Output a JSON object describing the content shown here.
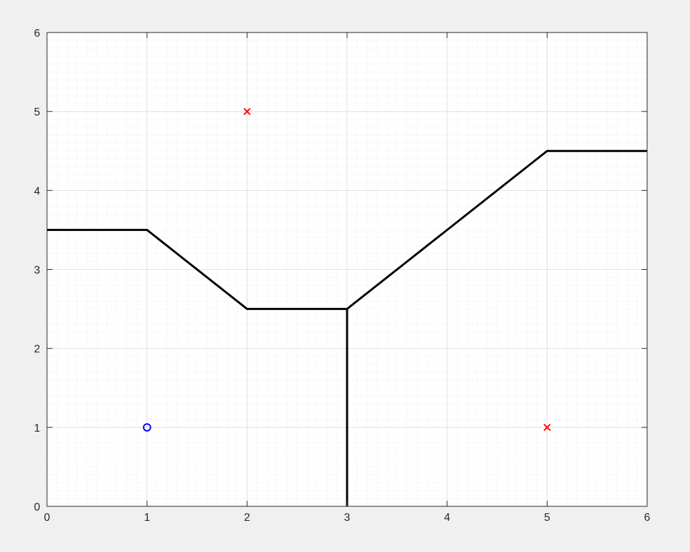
{
  "chart_data": {
    "type": "line",
    "title": "",
    "xlabel": "",
    "ylabel": "",
    "xlim": [
      0,
      6
    ],
    "ylim": [
      0,
      6
    ],
    "xticks": [
      "0",
      "1",
      "2",
      "3",
      "4",
      "5",
      "6"
    ],
    "yticks": [
      "0",
      "1",
      "2",
      "3",
      "4",
      "5",
      "6"
    ],
    "grid": true,
    "minor_grid": true,
    "minor_step": 0.1,
    "background": "#ffffff",
    "figure_background": "#f0f0f0",
    "series": [
      {
        "type": "line",
        "color": "#000000",
        "x": [
          0,
          1,
          2,
          3,
          5,
          6
        ],
        "y": [
          3.5,
          3.5,
          2.5,
          2.5,
          4.5,
          4.5
        ]
      },
      {
        "type": "line",
        "color": "#000000",
        "x": [
          3,
          3
        ],
        "y": [
          0,
          2.5
        ]
      },
      {
        "type": "scatter",
        "marker": "o",
        "color": "#0000ff",
        "x": [
          1
        ],
        "y": [
          1
        ]
      },
      {
        "type": "scatter",
        "marker": "x",
        "color": "#ff0000",
        "x": [
          2,
          5
        ],
        "y": [
          5,
          1
        ]
      }
    ]
  }
}
